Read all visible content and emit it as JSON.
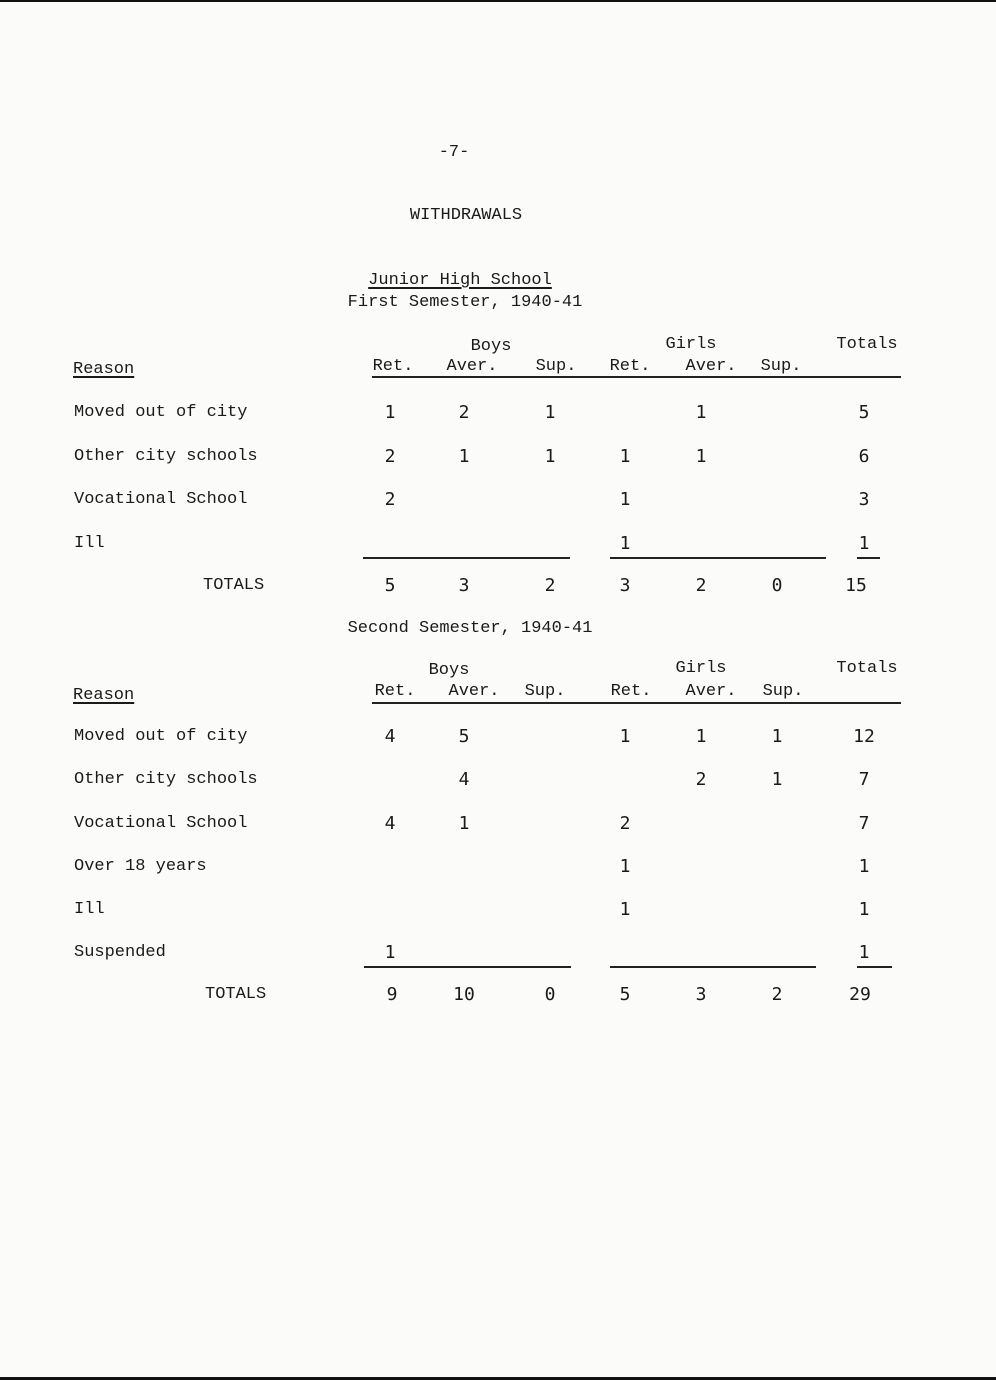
{
  "page_number": "-7-",
  "title": "WITHDRAWALS",
  "school": "Junior High School",
  "tables": [
    {
      "subtitle": "First Semester, 1940-41",
      "group_headers": {
        "boys": "Boys",
        "girls": "Girls",
        "totals": "Totals"
      },
      "reason_header": "Reason",
      "columns": [
        "Ret.",
        "Aver.",
        "Sup.",
        "Ret.",
        "Aver.",
        "Sup."
      ],
      "rows": [
        {
          "reason": "Moved out of city",
          "values": [
            "1",
            "2",
            "1",
            "",
            "1",
            ""
          ],
          "total": "5"
        },
        {
          "reason": "Other city schools",
          "values": [
            "2",
            "1",
            "1",
            "1",
            "1",
            ""
          ],
          "total": "6"
        },
        {
          "reason": "Vocational School",
          "values": [
            "2",
            "",
            "",
            "1",
            "",
            ""
          ],
          "total": "3"
        },
        {
          "reason": "Ill",
          "values": [
            "",
            "",
            "",
            "1",
            "",
            ""
          ],
          "total": "1"
        }
      ],
      "totals_label": "TOTALS",
      "totals": [
        "5",
        "3",
        "2",
        "3",
        "2",
        "0"
      ],
      "grand_total": "15"
    },
    {
      "subtitle": "Second Semester, 1940-41",
      "group_headers": {
        "boys": "Boys",
        "girls": "Girls",
        "totals": "Totals"
      },
      "reason_header": "Reason",
      "columns": [
        "Ret.",
        "Aver.",
        "Sup.",
        "Ret.",
        "Aver.",
        "Sup."
      ],
      "rows": [
        {
          "reason": "Moved out of city",
          "values": [
            "4",
            "5",
            "",
            "1",
            "1",
            "1"
          ],
          "total": "12"
        },
        {
          "reason": "Other city schools",
          "values": [
            "",
            "4",
            "",
            "",
            "2",
            "1"
          ],
          "total": "7"
        },
        {
          "reason": "Vocational School",
          "values": [
            "4",
            "1",
            "",
            "2",
            "",
            ""
          ],
          "total": "7"
        },
        {
          "reason": "Over 18 years",
          "values": [
            "",
            "",
            "",
            "1",
            "",
            ""
          ],
          "total": "1"
        },
        {
          "reason": "Ill",
          "values": [
            "",
            "",
            "",
            "1",
            "",
            ""
          ],
          "total": "1"
        },
        {
          "reason": "Suspended",
          "values": [
            "1",
            "",
            "",
            "",
            "",
            ""
          ],
          "total": "1"
        }
      ],
      "totals_label": "TOTALS",
      "totals": [
        "9",
        "10",
        "0",
        "5",
        "3",
        "2"
      ],
      "grand_total": "29"
    }
  ]
}
